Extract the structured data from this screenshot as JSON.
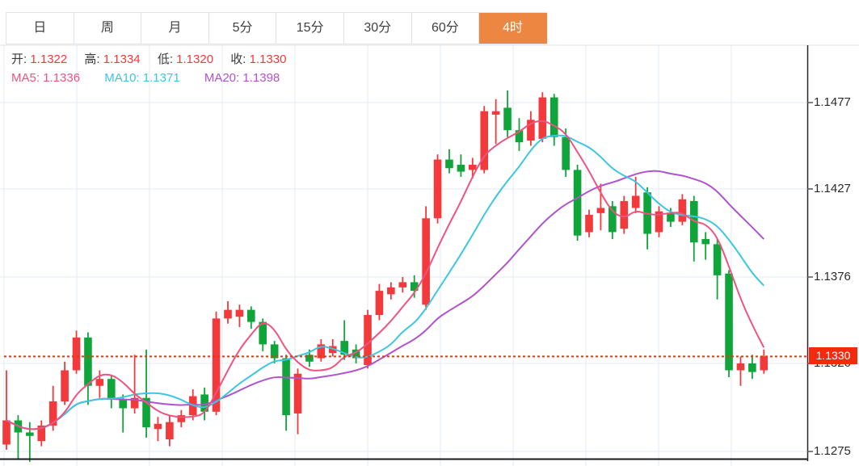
{
  "tabs": {
    "items": [
      {
        "id": "day",
        "label": "日"
      },
      {
        "id": "week",
        "label": "周"
      },
      {
        "id": "month",
        "label": "月"
      },
      {
        "id": "5min",
        "label": "5分"
      },
      {
        "id": "15min",
        "label": "15分"
      },
      {
        "id": "30min",
        "label": "30分"
      },
      {
        "id": "60min",
        "label": "60分"
      },
      {
        "id": "4hour",
        "label": "4时"
      }
    ],
    "active_id": "4hour"
  },
  "quote": {
    "open_label": "开:",
    "open_value": "1.1322",
    "high_label": "高:",
    "high_value": "1.1334",
    "low_label": "低:",
    "low_value": "1.1320",
    "close_label": "收:",
    "close_value": "1.1330"
  },
  "ma_legend": {
    "ma5_label": "MA5:",
    "ma5_value": "1.1336",
    "ma10_label": "MA10:",
    "ma10_value": "1.1371",
    "ma20_label": "MA20:",
    "ma20_value": "1.1398"
  },
  "price_marker": {
    "value": "1.1330"
  },
  "colors": {
    "up": "#f2393c",
    "down": "#10a53a",
    "tab_active_bg": "#ed8640",
    "tab_active_text": "#ffffff",
    "price_marker_bg": "#f42a0d",
    "dotted_line": "#f42f12",
    "ma5": "#ef5380",
    "ma10": "#3cc6e2",
    "ma20": "#b153cc",
    "grid": "#e2ebf3",
    "axis": "#24272c"
  },
  "chart_data": {
    "type": "candlestick",
    "timeframe": "4时",
    "y_axis": {
      "tick_labels": [
        1.1477,
        1.1427,
        1.1376,
        1.1326,
        1.1275
      ]
    },
    "current_price_line": 1.133,
    "moving_averages": [
      {
        "name": "MA5",
        "window": 5,
        "value": 1.1336
      },
      {
        "name": "MA10",
        "window": 10,
        "value": 1.1371
      },
      {
        "name": "MA20",
        "window": 20,
        "value": 1.1398
      }
    ],
    "candles": [
      [
        1.1279,
        1.1322,
        1.1276,
        1.1293
      ],
      [
        1.1293,
        1.1296,
        1.1271,
        1.1286
      ],
      [
        1.1286,
        1.1292,
        1.1269,
        1.1284
      ],
      [
        1.1281,
        1.1293,
        1.1278,
        1.129
      ],
      [
        1.129,
        1.1313,
        1.1287,
        1.1304
      ],
      [
        1.1304,
        1.1327,
        1.1302,
        1.1322
      ],
      [
        1.1322,
        1.1345,
        1.132,
        1.1341
      ],
      [
        1.1341,
        1.1344,
        1.1302,
        1.1313
      ],
      [
        1.1313,
        1.1322,
        1.1306,
        1.1317
      ],
      [
        1.1317,
        1.1319,
        1.13,
        1.1305
      ],
      [
        1.1305,
        1.1308,
        1.1286,
        1.13
      ],
      [
        1.13,
        1.1331,
        1.1297,
        1.1306
      ],
      [
        1.1306,
        1.1334,
        1.1283,
        1.1289
      ],
      [
        1.1288,
        1.1295,
        1.1281,
        1.1291
      ],
      [
        1.1282,
        1.1296,
        1.1278,
        1.1292
      ],
      [
        1.1292,
        1.1299,
        1.1289,
        1.1296
      ],
      [
        1.1296,
        1.1311,
        1.1293,
        1.1307
      ],
      [
        1.1308,
        1.1312,
        1.1293,
        1.1298
      ],
      [
        1.1298,
        1.1356,
        1.1296,
        1.1352
      ],
      [
        1.1352,
        1.1362,
        1.1349,
        1.1357
      ],
      [
        1.1353,
        1.136,
        1.1347,
        1.1357
      ],
      [
        1.1357,
        1.1359,
        1.1346,
        1.135
      ],
      [
        1.135,
        1.1352,
        1.1333,
        1.1337
      ],
      [
        1.1337,
        1.1339,
        1.1326,
        1.1329
      ],
      [
        1.1329,
        1.1331,
        1.1287,
        1.1296
      ],
      [
        1.1297,
        1.1323,
        1.1285,
        1.132
      ],
      [
        1.1331,
        1.1334,
        1.1324,
        1.1327
      ],
      [
        1.1329,
        1.134,
        1.1327,
        1.1337
      ],
      [
        1.1332,
        1.134,
        1.133,
        1.1336
      ],
      [
        1.1339,
        1.1351,
        1.1328,
        1.1331
      ],
      [
        1.1334,
        1.1337,
        1.1326,
        1.1329
      ],
      [
        1.1325,
        1.1357,
        1.1323,
        1.1354
      ],
      [
        1.1354,
        1.1372,
        1.1351,
        1.1368
      ],
      [
        1.1366,
        1.1373,
        1.1363,
        1.137
      ],
      [
        1.137,
        1.1376,
        1.1367,
        1.1373
      ],
      [
        1.1373,
        1.1377,
        1.1364,
        1.1368
      ],
      [
        1.136,
        1.1417,
        1.1357,
        1.141
      ],
      [
        1.141,
        1.1447,
        1.1407,
        1.1444
      ],
      [
        1.1444,
        1.145,
        1.1436,
        1.1439
      ],
      [
        1.1441,
        1.1447,
        1.1434,
        1.1437
      ],
      [
        1.1438,
        1.1445,
        1.1433,
        1.1441
      ],
      [
        1.1438,
        1.1475,
        1.1436,
        1.1472
      ],
      [
        1.147,
        1.1479,
        1.1453,
        1.1472
      ],
      [
        1.1474,
        1.1484,
        1.1457,
        1.1461
      ],
      [
        1.1461,
        1.1468,
        1.1449,
        1.1454
      ],
      [
        1.1455,
        1.1472,
        1.1452,
        1.1467
      ],
      [
        1.1456,
        1.1483,
        1.1454,
        1.148
      ],
      [
        1.148,
        1.1482,
        1.1452,
        1.1457
      ],
      [
        1.1457,
        1.1462,
        1.1434,
        1.1438
      ],
      [
        1.1438,
        1.1441,
        1.1397,
        1.14
      ],
      [
        1.1402,
        1.1415,
        1.1399,
        1.1412
      ],
      [
        1.1413,
        1.143,
        1.1403,
        1.1416
      ],
      [
        1.1417,
        1.142,
        1.1398,
        1.1402
      ],
      [
        1.1404,
        1.1423,
        1.1401,
        1.142
      ],
      [
        1.1416,
        1.1434,
        1.1413,
        1.1423
      ],
      [
        1.1425,
        1.1428,
        1.1392,
        1.1401
      ],
      [
        1.1402,
        1.1417,
        1.1399,
        1.1414
      ],
      [
        1.1413,
        1.1416,
        1.1405,
        1.1408
      ],
      [
        1.1408,
        1.1424,
        1.1406,
        1.1421
      ],
      [
        1.142,
        1.1423,
        1.1385,
        1.1396
      ],
      [
        1.1398,
        1.1402,
        1.1386,
        1.1395
      ],
      [
        1.1395,
        1.1398,
        1.1363,
        1.1377
      ],
      [
        1.1378,
        1.138,
        1.1318,
        1.1322
      ],
      [
        1.1322,
        1.133,
        1.1313,
        1.1326
      ],
      [
        1.1326,
        1.1331,
        1.1317,
        1.1321
      ],
      [
        1.1322,
        1.1334,
        1.132,
        1.133
      ]
    ]
  }
}
